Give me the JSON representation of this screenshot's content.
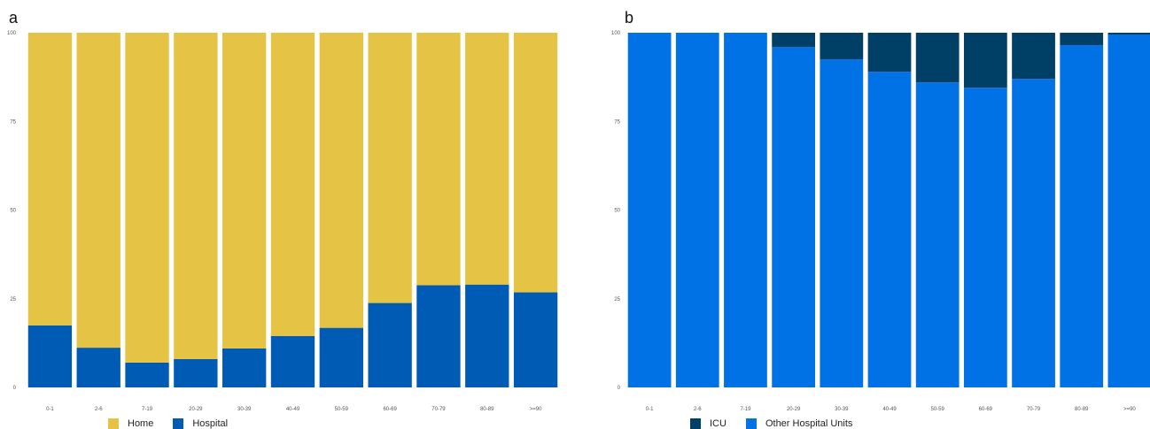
{
  "chart_data": [
    {
      "panel": "a",
      "type": "bar",
      "stacked": true,
      "categories": [
        "0-1",
        "2-6",
        "7-19",
        "20-29",
        "30-39",
        "40-49",
        "50-59",
        "60-69",
        "70-79",
        "80-89",
        ">=90"
      ],
      "series": [
        {
          "name": "Hospital",
          "color": "#005bb5",
          "values": [
            17.5,
            11.2,
            7.0,
            8.0,
            11.0,
            14.5,
            16.8,
            23.8,
            28.8,
            29.0,
            26.8
          ]
        },
        {
          "name": "Home",
          "color": "#e5c345",
          "values": [
            82.5,
            88.8,
            93.0,
            92.0,
            89.0,
            85.5,
            83.2,
            76.2,
            71.2,
            71.0,
            73.2
          ]
        }
      ],
      "y_ticks": [
        "0",
        "25",
        "50",
        "75",
        "100"
      ],
      "ylim": [
        0,
        100
      ],
      "legend": {
        "position": "bottom-left",
        "order": [
          "Home",
          "Hospital"
        ]
      }
    },
    {
      "panel": "b",
      "type": "bar",
      "stacked": true,
      "categories": [
        "0-1",
        "2-6",
        "7-19",
        "20-29",
        "30-39",
        "40-49",
        "50-59",
        "60-69",
        "70-79",
        "80-89",
        ">=90"
      ],
      "series": [
        {
          "name": "Other Hospital Units",
          "color": "#0072e6",
          "values": [
            100,
            100,
            100,
            96.0,
            92.5,
            89.0,
            86.0,
            84.5,
            87.0,
            96.5,
            99.5
          ]
        },
        {
          "name": "ICU",
          "color": "#003f66",
          "values": [
            0,
            0,
            0,
            4.0,
            7.5,
            11.0,
            14.0,
            15.5,
            13.0,
            3.5,
            0.5
          ]
        }
      ],
      "y_ticks": [
        "0",
        "25",
        "50",
        "75",
        "100"
      ],
      "ylim": [
        0,
        100
      ],
      "legend": {
        "position": "bottom-left",
        "order": [
          "ICU",
          "Other Hospital Units"
        ]
      }
    }
  ],
  "panel_labels": {
    "a": "a",
    "b": "b"
  }
}
